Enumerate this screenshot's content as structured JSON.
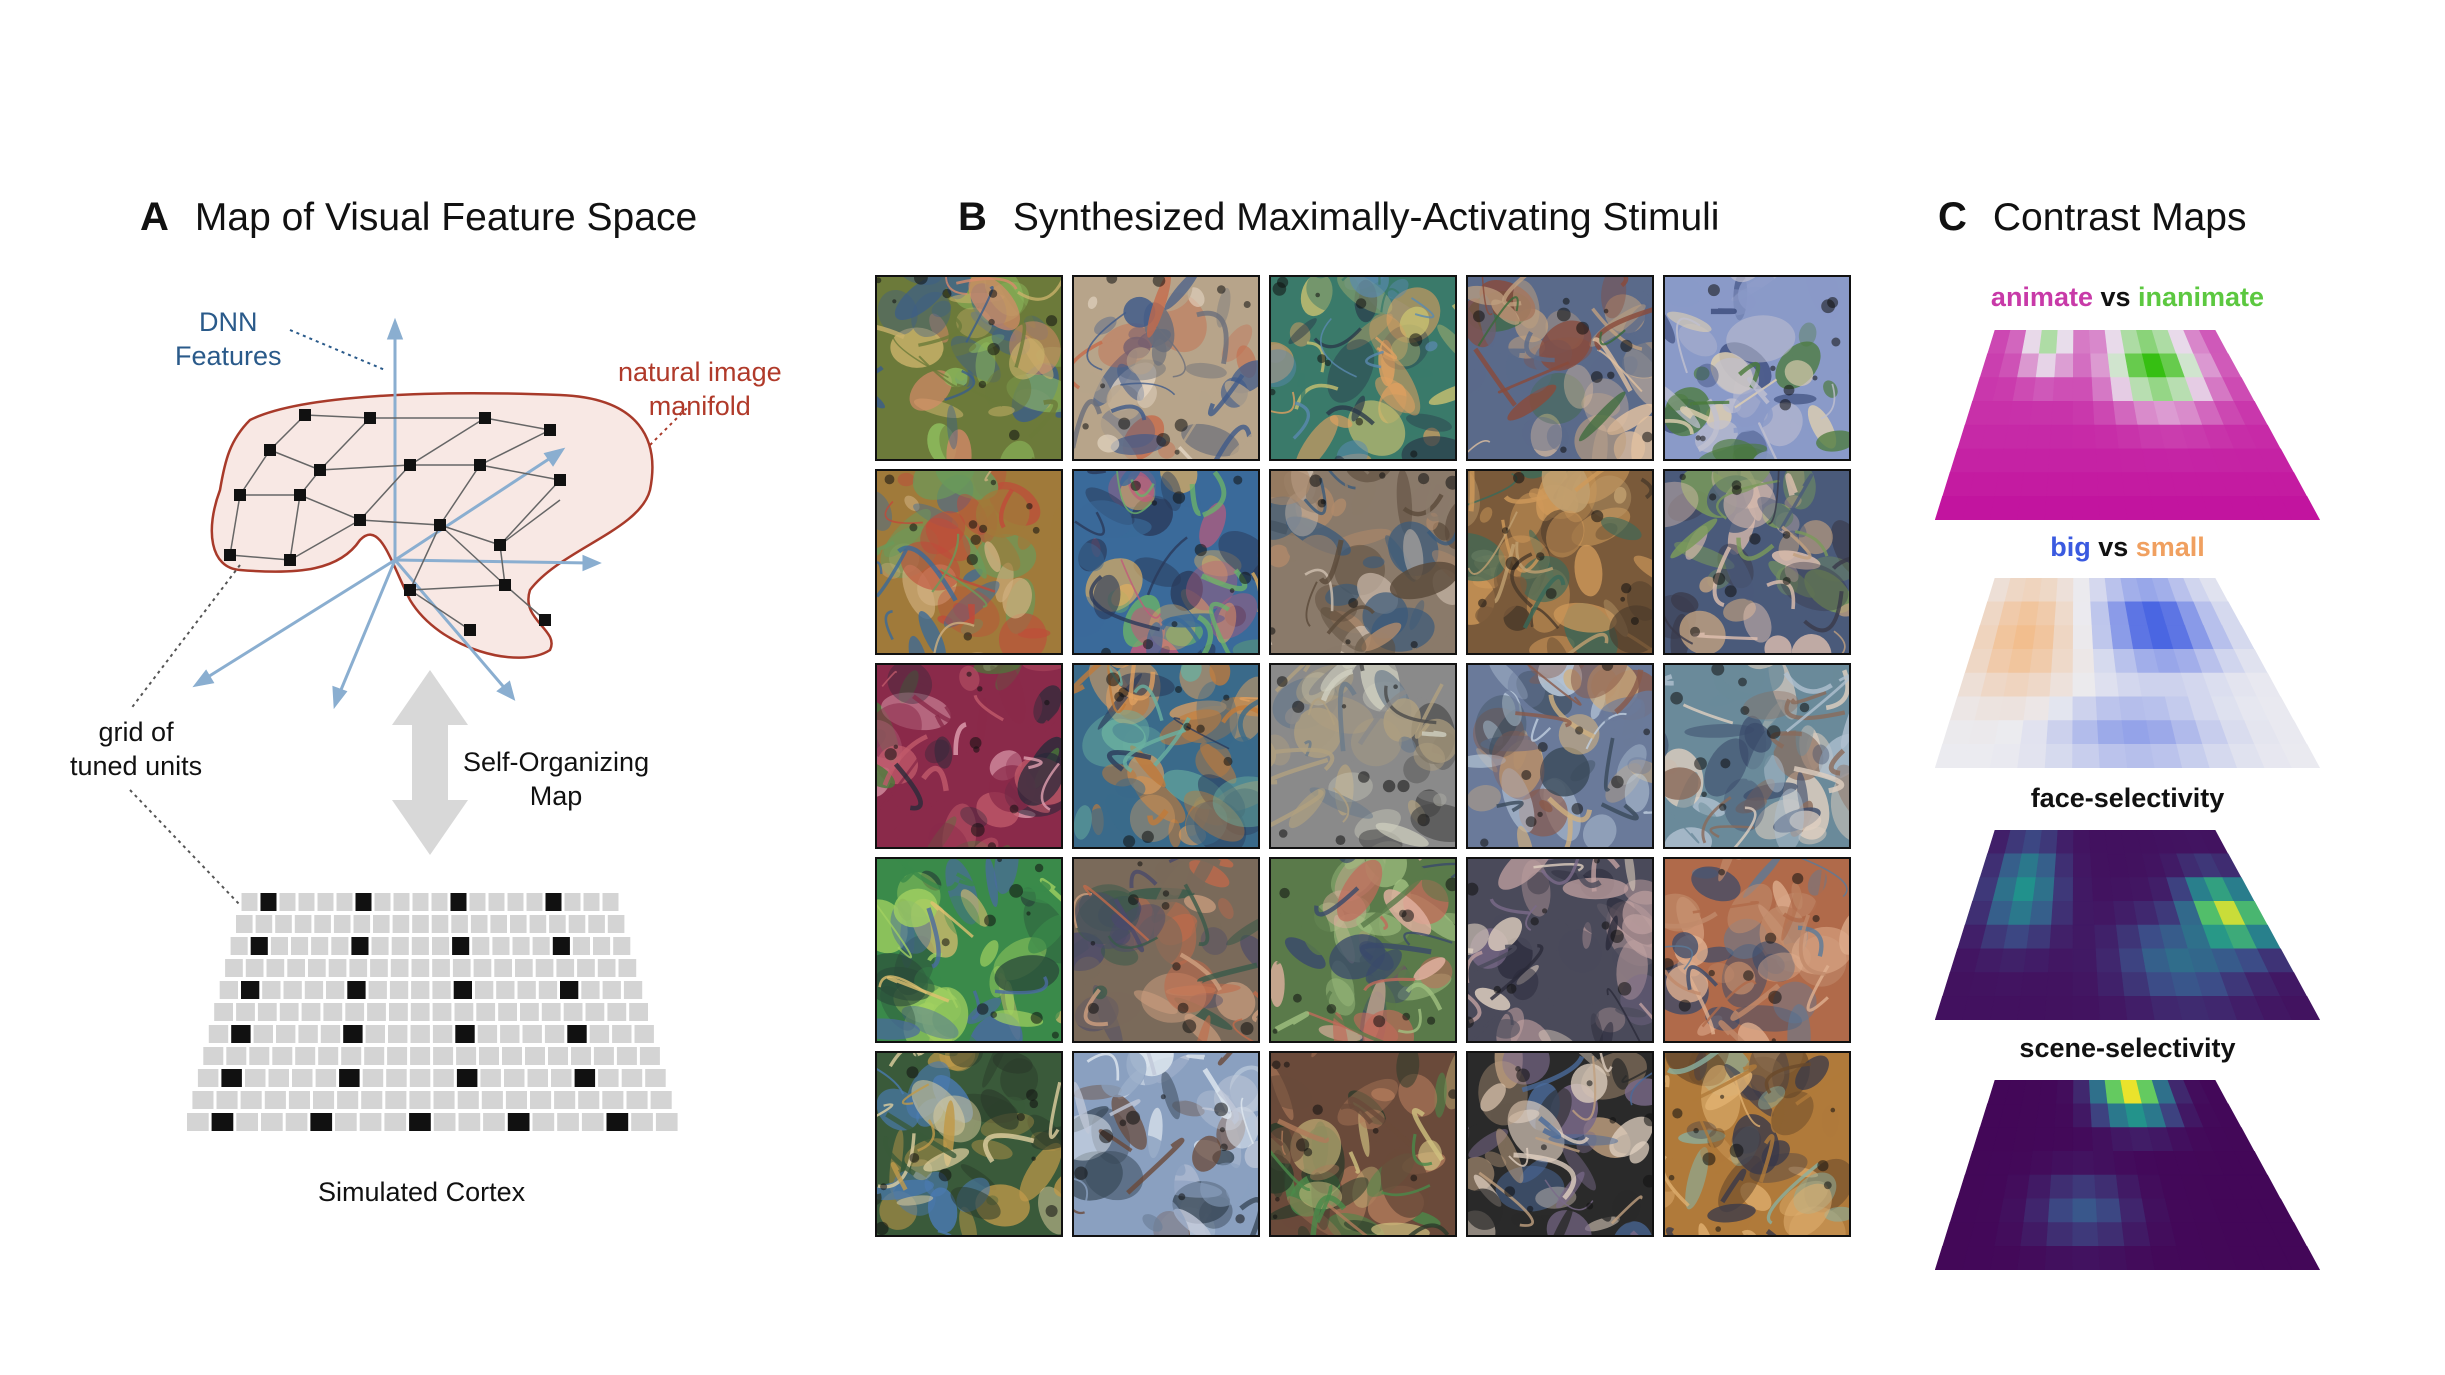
{
  "panel_a": {
    "letter": "A",
    "title": "Map of Visual Feature Space",
    "dnn_features": "DNN\nFeatures",
    "manifold": "natural image\nmanifold",
    "grid_units": "grid of\ntuned units",
    "som": "Self-Organizing\nMap",
    "cortex": "Simulated Cortex"
  },
  "panel_b": {
    "letter": "B",
    "title": "Synthesized Maximally-Activating Stimuli",
    "tiles": [
      {
        "palette": [
          "#6c7a3a",
          "#c9b26a",
          "#3b5e8a",
          "#d98a6a",
          "#8fbf5f"
        ]
      },
      {
        "palette": [
          "#b7a48a",
          "#e5d7c4",
          "#6a6e7a",
          "#c66a4a",
          "#3e5a8a"
        ]
      },
      {
        "palette": [
          "#3a7a6a",
          "#c8c070",
          "#5a8ab0",
          "#e0a060",
          "#2a3a4a"
        ]
      },
      {
        "palette": [
          "#5a6a8a",
          "#c0a080",
          "#3a6a3a",
          "#e0c0a0",
          "#8a4a3a"
        ]
      },
      {
        "palette": [
          "#8a9ac8",
          "#e0d0b0",
          "#4a7a3a",
          "#c0c0d0",
          "#3a4a7a"
        ]
      },
      {
        "palette": [
          "#a07a3a",
          "#d0b080",
          "#3a6a9a",
          "#c04a3a",
          "#6a9a5a"
        ]
      },
      {
        "palette": [
          "#3a6a9a",
          "#e0b060",
          "#6ab06a",
          "#c05a7a",
          "#2a3a5a"
        ]
      },
      {
        "palette": [
          "#8a7a6a",
          "#d0c0b0",
          "#5a4a3a",
          "#b08a6a",
          "#3a5a7a"
        ]
      },
      {
        "palette": [
          "#7a5a3a",
          "#d09a5a",
          "#3a6a5a",
          "#c0a070",
          "#4a3a2a"
        ]
      },
      {
        "palette": [
          "#4a5a7a",
          "#c0a080",
          "#7a9a5a",
          "#e0c0b0",
          "#3a3a4a"
        ]
      },
      {
        "palette": [
          "#8a2a4a",
          "#c05a6a",
          "#4a7a3a",
          "#e0a0b0",
          "#2a2a3a"
        ]
      },
      {
        "palette": [
          "#3a6a8a",
          "#e0a060",
          "#6ab0a0",
          "#c07a3a",
          "#2a3a5a"
        ]
      },
      {
        "palette": [
          "#8a8a8a",
          "#d0d0c0",
          "#4a4a4a",
          "#b0a080",
          "#6a7a8a"
        ]
      },
      {
        "palette": [
          "#6a7a9a",
          "#d0b080",
          "#8a5a4a",
          "#c0d0e0",
          "#3a4a5a"
        ]
      },
      {
        "palette": [
          "#6a8a9a",
          "#e0d0c0",
          "#3a4a6a",
          "#b0c0d0",
          "#8a6a5a"
        ]
      },
      {
        "palette": [
          "#3a8a4a",
          "#a0d060",
          "#4a6aa0",
          "#e0c070",
          "#2a4a3a"
        ]
      },
      {
        "palette": [
          "#7a6a5a",
          "#d0a080",
          "#3a5a4a",
          "#c06a4a",
          "#4a4a6a"
        ]
      },
      {
        "palette": [
          "#5a7a4a",
          "#c06a5a",
          "#3a4a6a",
          "#a0c080",
          "#e0b0a0"
        ]
      },
      {
        "palette": [
          "#4a4a5a",
          "#c0a0a0",
          "#7a6a8a",
          "#e0d0c0",
          "#2a2a3a"
        ]
      },
      {
        "palette": [
          "#b06a4a",
          "#e0b090",
          "#5a7a9a",
          "#c08a6a",
          "#3a4a6a"
        ]
      },
      {
        "palette": [
          "#3a5a3a",
          "#c09a4a",
          "#4a7ab0",
          "#e0d0a0",
          "#2a3a2a"
        ]
      },
      {
        "palette": [
          "#8aa0c0",
          "#e0e8f0",
          "#6a4a3a",
          "#c0c8d8",
          "#3a4a5a"
        ]
      },
      {
        "palette": [
          "#6a4a3a",
          "#b07a5a",
          "#4a8a4a",
          "#d0c080",
          "#2a3a2a"
        ]
      },
      {
        "palette": [
          "#2a2a2a",
          "#e0d0c0",
          "#7a6a8a",
          "#c0a080",
          "#4a6a9a"
        ]
      },
      {
        "palette": [
          "#b07a3a",
          "#e0b070",
          "#6a4a2a",
          "#8ab0a0",
          "#3a3a4a"
        ]
      }
    ]
  },
  "panel_c": {
    "letter": "C",
    "title": "Contrast Maps",
    "maps": [
      {
        "parts": [
          {
            "text": "animate",
            "color": "#c83aa8"
          },
          {
            "text": " vs ",
            "color": "#111111"
          },
          {
            "text": "inanimate",
            "color": "#5cc840"
          }
        ]
      },
      {
        "parts": [
          {
            "text": "big",
            "color": "#3a5ae0"
          },
          {
            "text": " vs ",
            "color": "#111111"
          },
          {
            "text": "small",
            "color": "#f0a060"
          }
        ]
      },
      {
        "parts": [
          {
            "text": "face-selectivity",
            "color": "#111111"
          }
        ]
      },
      {
        "parts": [
          {
            "text": "scene-selectivity",
            "color": "#111111"
          }
        ]
      }
    ]
  },
  "colors": {
    "manifold_stroke": "#a83a2a",
    "manifold_fill": "#f8e8e4",
    "axis": "#8aaed0",
    "grid_cell": "#d4d4d4",
    "unit": "#111111",
    "som_arrow": "#d8d8d8"
  }
}
